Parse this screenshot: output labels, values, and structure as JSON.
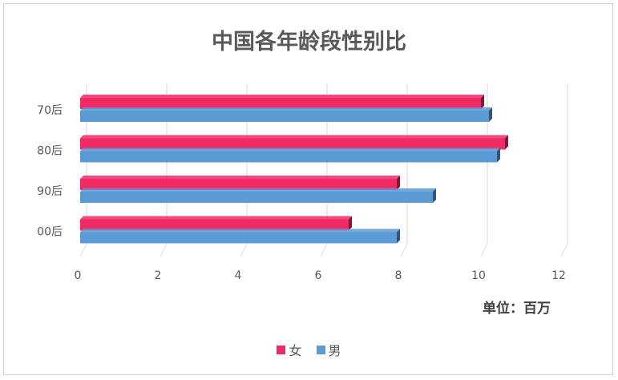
{
  "chart_data": {
    "type": "bar",
    "orientation": "horizontal",
    "title": "中国各年龄段性别比",
    "unit_label": "单位：百万",
    "categories": [
      "70后",
      "80后",
      "90后",
      "00后"
    ],
    "series": [
      {
        "name": "女",
        "values": [
          10,
          10.6,
          7.9,
          6.7
        ],
        "color": "#f02a65"
      },
      {
        "name": "男",
        "values": [
          10.2,
          10.4,
          8.8,
          7.9
        ],
        "color": "#5b9bd5"
      }
    ],
    "x_ticks": [
      "0",
      "2",
      "4",
      "6",
      "8",
      "10",
      "12"
    ],
    "xlim": [
      0,
      12
    ],
    "grid": true,
    "legend_position": "bottom"
  }
}
